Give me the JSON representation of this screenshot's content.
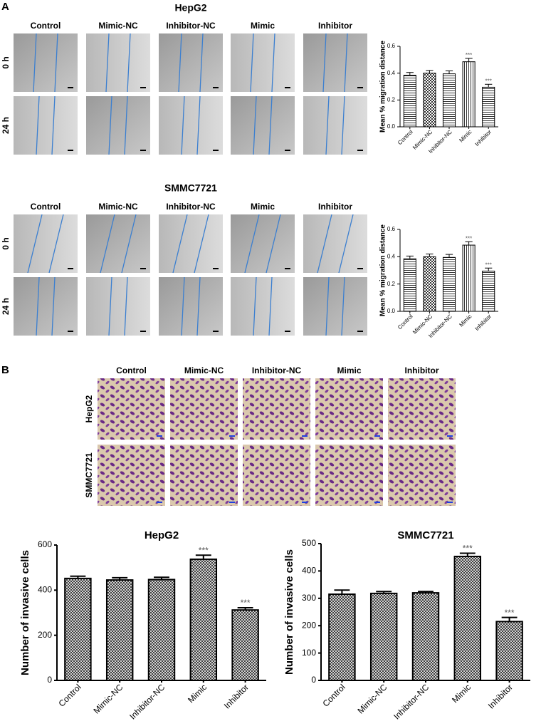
{
  "panel_a": {
    "label": "A",
    "groups": [
      {
        "title": "HepG2",
        "columns": [
          "Control",
          "Mimic-NC",
          "Inhibitor-NC",
          "Mimic",
          "Inhibitor"
        ],
        "rows": [
          "0 h",
          "24 h"
        ]
      },
      {
        "title": "SMMC7721",
        "columns": [
          "Control",
          "Mimic-NC",
          "Inhibitor-NC",
          "Mimic",
          "Inhibitor"
        ],
        "rows": [
          "0 h",
          "24 h"
        ]
      }
    ]
  },
  "panel_b": {
    "label": "B",
    "columns": [
      "Control",
      "Mimic-NC",
      "Inhibitor-NC",
      "Mimic",
      "Inhibitor"
    ],
    "rows": [
      "HepG2",
      "SMMC7721"
    ]
  },
  "chart_data": [
    {
      "type": "bar",
      "ylabel": "Mean % migration distance",
      "categories": [
        "Control",
        "Mimic-NC",
        "Inhibitor-NC",
        "Mimic",
        "Inhibitor"
      ],
      "values": [
        0.385,
        0.4,
        0.395,
        0.485,
        0.295
      ],
      "errors": [
        0.02,
        0.02,
        0.022,
        0.025,
        0.022
      ],
      "color": "#000000",
      "ylim": [
        0,
        0.6
      ],
      "yticks": [
        {
          "value": 0,
          "label": "0.0"
        },
        0.2,
        0.4,
        0.6
      ],
      "annotations": [
        {
          "text": "***",
          "category": "Mimic"
        },
        {
          "text": "***",
          "category": "Inhibitor"
        }
      ]
    },
    {
      "type": "bar",
      "ylabel": "Mean % migration distance",
      "categories": [
        "Control",
        "Mimic-NC",
        "Inhibitor-NC",
        "Mimic",
        "Inhibitor"
      ],
      "values": [
        0.385,
        0.4,
        0.395,
        0.485,
        0.295
      ],
      "errors": [
        0.02,
        0.02,
        0.022,
        0.025,
        0.022
      ],
      "color": "#000000",
      "ylim": [
        0,
        0.6
      ],
      "yticks": [
        {
          "value": 0,
          "label": "0.0"
        },
        0.2,
        0.4,
        0.6
      ],
      "annotations": [
        {
          "text": "***",
          "category": "Mimic"
        },
        {
          "text": "***",
          "category": "Inhibitor"
        }
      ]
    },
    {
      "type": "bar",
      "title": "HepG2",
      "ylabel": "Number of invasive cells",
      "categories": [
        "Control",
        "Mimic-NC",
        "Inhibitor-NC",
        "Mimic",
        "Inhibitor"
      ],
      "values": [
        452,
        445,
        447,
        537,
        312
      ],
      "errors": [
        10,
        10,
        10,
        18,
        10
      ],
      "color": "#000000",
      "ylim": [
        0,
        600
      ],
      "yticks": [
        0,
        200,
        400,
        600
      ],
      "annotations": [
        {
          "text": "***",
          "category": "Mimic"
        },
        {
          "text": "***",
          "category": "Inhibitor"
        }
      ]
    },
    {
      "type": "bar",
      "title": "SMMC7721",
      "ylabel": "Number of invasive cells",
      "categories": [
        "Control",
        "Mimic-NC",
        "Inhibitor-NC",
        "Mimic",
        "Inhibitor"
      ],
      "values": [
        315,
        318,
        320,
        453,
        215
      ],
      "errors": [
        15,
        7,
        5,
        12,
        15
      ],
      "color": "#000000",
      "ylim": [
        0,
        500
      ],
      "yticks": [
        0,
        100,
        200,
        300,
        400,
        500
      ],
      "annotations": [
        {
          "text": "***",
          "category": "Mimic"
        },
        {
          "text": "***",
          "category": "Inhibitor"
        }
      ]
    }
  ]
}
